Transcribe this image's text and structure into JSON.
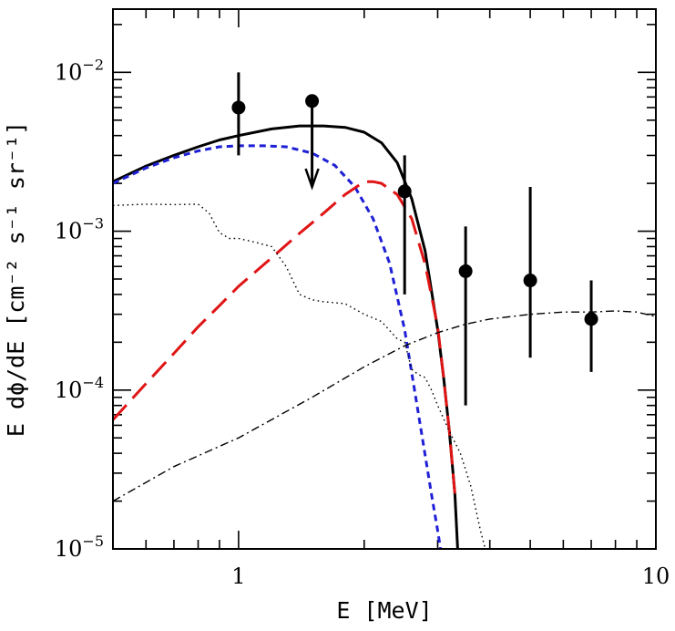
{
  "chart_data": {
    "type": "line",
    "title": "",
    "xlabel": "E [MeV]",
    "ylabel": "E dϕ/dE [cm⁻² s⁻¹ sr⁻¹]",
    "xscale": "log",
    "yscale": "log",
    "xlim": [
      0.5,
      10
    ],
    "ylim": [
      1e-05,
      0.025
    ],
    "grid": false,
    "x_ticks": [
      {
        "value": 1,
        "label": "1"
      },
      {
        "value": 10,
        "label": "10"
      }
    ],
    "y_ticks": [
      {
        "value": 1e-05,
        "base": "10",
        "exp": "−5"
      },
      {
        "value": 0.0001,
        "base": "10",
        "exp": "−4"
      },
      {
        "value": 0.001,
        "base": "10",
        "exp": "−3"
      },
      {
        "value": 0.01,
        "base": "10",
        "exp": "−2"
      }
    ],
    "series": [
      {
        "style": "solid",
        "color": "#000000",
        "x": [
          0.5,
          0.6,
          0.7,
          0.8,
          0.9,
          1.0,
          1.2,
          1.4,
          1.6,
          1.8,
          2.0,
          2.2,
          2.4,
          2.6,
          2.8,
          3.0,
          3.1,
          3.2,
          3.3,
          3.35
        ],
        "y": [
          0.00205,
          0.00257,
          0.003,
          0.0034,
          0.00375,
          0.004,
          0.0044,
          0.0046,
          0.0046,
          0.0045,
          0.0042,
          0.0036,
          0.0027,
          0.0016,
          0.00075,
          0.00024,
          0.00012,
          5.5e-05,
          2.2e-05,
          1e-05
        ]
      },
      {
        "style": "short-dash",
        "color": "#1f1fd6",
        "x": [
          0.5,
          0.6,
          0.7,
          0.8,
          0.9,
          1.0,
          1.15,
          1.3,
          1.5,
          1.7,
          1.9,
          2.1,
          2.3,
          2.5,
          2.7,
          2.9,
          3.0,
          3.1
        ],
        "y": [
          0.002,
          0.0025,
          0.0029,
          0.0032,
          0.0034,
          0.00345,
          0.00345,
          0.0034,
          0.0031,
          0.0026,
          0.0019,
          0.0012,
          0.00063,
          0.00024,
          7e-05,
          2.2e-05,
          1.3e-05,
          7.5e-06
        ]
      },
      {
        "style": "long-dash",
        "color": "#e01414",
        "x": [
          0.5,
          0.6,
          0.7,
          0.8,
          0.9,
          1.0,
          1.2,
          1.4,
          1.6,
          1.8,
          2.0,
          2.1,
          2.2,
          2.4,
          2.6,
          2.8,
          3.0,
          3.1,
          3.2,
          3.3
        ],
        "y": [
          6.5e-05,
          0.00011,
          0.00017,
          0.00025,
          0.00034,
          0.00045,
          0.00068,
          0.00097,
          0.0013,
          0.0017,
          0.00205,
          0.00205,
          0.002,
          0.0017,
          0.0012,
          0.00062,
          0.00025,
          0.00012,
          5.5e-05,
          2.2e-05
        ]
      },
      {
        "style": "dotted",
        "color": "#000000",
        "x": [
          0.5,
          0.6,
          0.7,
          0.8,
          0.85,
          0.9,
          0.95,
          1.0,
          1.1,
          1.2,
          1.3,
          1.4,
          1.5,
          1.6,
          1.8,
          2.0,
          2.2,
          2.4,
          2.5,
          2.6,
          2.7,
          2.8,
          2.9,
          3.0,
          3.2,
          3.4,
          3.6,
          3.8,
          3.9
        ],
        "y": [
          0.00145,
          0.00148,
          0.00147,
          0.00148,
          0.0013,
          0.00098,
          0.0009,
          0.0009,
          0.00085,
          0.0008,
          0.0006,
          0.0004,
          0.00037,
          0.00036,
          0.00035,
          0.0003,
          0.00027,
          0.00021,
          0.0002,
          0.000135,
          0.000125,
          0.00012,
          0.0001,
          8e-05,
          5.5e-05,
          4e-05,
          2.5e-05,
          1.3e-05,
          1e-05
        ]
      },
      {
        "style": "dash-dot",
        "color": "#000000",
        "x": [
          0.5,
          0.7,
          1.0,
          1.5,
          2.0,
          2.5,
          3.0,
          3.5,
          4.0,
          5.0,
          6.0,
          7.0,
          8.0,
          9.0,
          10.0
        ],
        "y": [
          2e-05,
          3.3e-05,
          5e-05,
          9e-05,
          0.00014,
          0.00019,
          0.00023,
          0.00026,
          0.00028,
          0.0003,
          0.00031,
          0.00031,
          0.000315,
          0.00031,
          0.00029
        ]
      }
    ],
    "data_points": [
      {
        "x": 1.0,
        "y": 0.006,
        "ylow": 0.003,
        "yhigh": 0.01,
        "upper_limit": false
      },
      {
        "x": 1.5,
        "y": 0.0066,
        "ylow": 0.0019,
        "yhigh": 0.0066,
        "upper_limit": true
      },
      {
        "x": 2.5,
        "y": 0.00178,
        "ylow": 0.0004,
        "yhigh": 0.003,
        "upper_limit": false
      },
      {
        "x": 3.5,
        "y": 0.00056,
        "ylow": 8e-05,
        "yhigh": 0.00107,
        "upper_limit": false
      },
      {
        "x": 5.0,
        "y": 0.00049,
        "ylow": 0.00016,
        "yhigh": 0.0019,
        "upper_limit": false
      },
      {
        "x": 7.0,
        "y": 0.00028,
        "ylow": 0.00013,
        "yhigh": 0.00049,
        "upper_limit": false
      }
    ]
  }
}
